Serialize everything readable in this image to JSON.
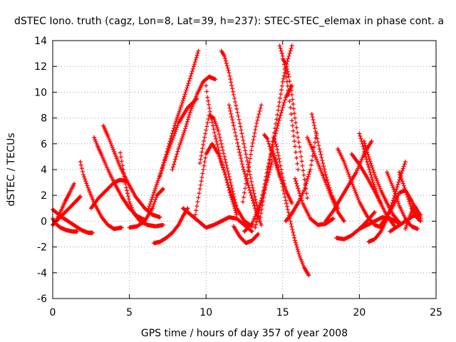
{
  "chart_data": {
    "type": "scatter",
    "title": "dSTEC Iono. truth (cagz, Lon=8, Lat=39, h=237): STEC-STEC_elemax in phase cont. a",
    "xlabel": "GPS time / hours of day 357 of year 2008",
    "ylabel": "dSTEC  / TECUs",
    "xlim": [
      0,
      25
    ],
    "ylim": [
      -6,
      14
    ],
    "xticks": [
      0,
      5,
      10,
      15,
      20,
      25
    ],
    "yticks": [
      -6,
      -4,
      -2,
      0,
      2,
      4,
      6,
      8,
      10,
      12,
      14
    ],
    "grid": true,
    "marker": "+",
    "color": "#ff0000",
    "series": [
      {
        "x": [
          0.0,
          0.3,
          0.6,
          1.0,
          1.5,
          1.9,
          2.3,
          2.6
        ],
        "y": [
          0.9,
          0.6,
          0.3,
          0.0,
          -0.4,
          -0.7,
          -0.9,
          -0.9
        ]
      },
      {
        "x": [
          0.0,
          0.2,
          0.5,
          0.9,
          1.3,
          1.6
        ],
        "y": [
          0.2,
          -0.2,
          -0.5,
          -0.7,
          -0.8,
          -0.8
        ]
      },
      {
        "x": [
          0.2,
          0.5,
          0.8,
          1.1,
          1.4
        ],
        "y": [
          0.0,
          0.7,
          1.5,
          2.2,
          2.9
        ]
      },
      {
        "x": [
          0.0,
          0.4,
          0.9,
          1.4,
          1.8
        ],
        "y": [
          -0.3,
          0.2,
          0.8,
          1.4,
          1.9
        ]
      },
      {
        "x": [
          1.8,
          2.0,
          2.3,
          2.7,
          3.2,
          3.6,
          4.0,
          4.5
        ],
        "y": [
          4.6,
          3.6,
          2.6,
          1.4,
          0.3,
          -0.3,
          -0.6,
          -0.5
        ]
      },
      {
        "x": [
          2.7,
          2.9,
          3.2,
          3.6,
          4.0,
          4.5,
          5.0,
          5.5,
          6.0
        ],
        "y": [
          6.5,
          5.9,
          5.1,
          4.0,
          3.0,
          1.9,
          1.0,
          0.4,
          0.1
        ]
      },
      {
        "x": [
          3.3,
          3.6,
          4.0,
          4.4,
          4.9,
          5.4,
          6.0,
          6.5,
          7.0
        ],
        "y": [
          7.4,
          6.6,
          5.4,
          4.2,
          3.0,
          1.9,
          1.0,
          0.5,
          0.3
        ]
      },
      {
        "x": [
          4.4,
          4.6,
          4.8,
          5.0,
          5.3,
          5.7,
          6.2,
          6.7,
          7.2
        ],
        "y": [
          5.3,
          4.0,
          2.6,
          1.5,
          0.6,
          0.0,
          -0.3,
          -0.4,
          -0.3
        ]
      },
      {
        "x": [
          2.5,
          3.0,
          3.5,
          4.0,
          4.4,
          4.8
        ],
        "y": [
          1.0,
          1.8,
          2.4,
          3.0,
          3.2,
          3.1
        ]
      },
      {
        "x": [
          5.0,
          5.5,
          6.0,
          6.5,
          6.8,
          7.2
        ],
        "y": [
          -0.5,
          -0.4,
          0.0,
          1.0,
          2.0,
          2.5
        ]
      },
      {
        "x": [
          6.6,
          7.0,
          7.4,
          7.8,
          8.2,
          8.5,
          8.8
        ],
        "y": [
          -1.7,
          -1.6,
          -1.3,
          -0.9,
          -0.3,
          0.4,
          1.0
        ]
      },
      {
        "x": [
          6.2,
          6.6,
          7.0,
          7.4,
          7.8,
          8.2,
          8.8,
          9.4
        ],
        "y": [
          0.8,
          2.2,
          3.6,
          5.0,
          6.3,
          7.6,
          8.8,
          9.5
        ]
      },
      {
        "x": [
          7.0,
          7.5,
          8.0,
          8.4,
          8.8,
          9.2,
          9.5
        ],
        "y": [
          3.5,
          5.6,
          7.6,
          9.0,
          10.5,
          12.0,
          13.2
        ]
      },
      {
        "x": [
          7.8,
          8.2,
          8.6,
          9.0,
          9.4,
          9.8,
          10.2,
          10.6
        ],
        "y": [
          4.0,
          5.6,
          7.0,
          8.6,
          9.8,
          10.8,
          11.2,
          11.0
        ]
      },
      {
        "x": [
          9.3,
          9.6,
          10.0,
          10.4,
          10.8,
          11.2,
          11.6,
          12.0
        ],
        "y": [
          0.5,
          2.5,
          5.2,
          6.0,
          5.2,
          3.8,
          2.0,
          0.5
        ]
      },
      {
        "x": [
          9.6,
          9.9,
          10.2,
          10.5,
          10.8,
          11.2,
          11.6,
          12.0
        ],
        "y": [
          4.5,
          6.5,
          8.2,
          8.0,
          7.0,
          5.0,
          3.0,
          1.0
        ]
      },
      {
        "x": [
          10.0,
          10.1,
          10.3,
          10.6,
          11.0,
          11.5,
          12.0,
          12.5,
          13.0
        ],
        "y": [
          10.5,
          9.6,
          8.2,
          6.6,
          4.6,
          2.6,
          1.0,
          0.0,
          -0.4
        ]
      },
      {
        "x": [
          11.0,
          11.2,
          11.5,
          11.8,
          12.2,
          12.6,
          13.0,
          13.4
        ],
        "y": [
          13.2,
          12.8,
          11.5,
          9.8,
          7.6,
          5.2,
          2.8,
          0.8
        ]
      },
      {
        "x": [
          11.5,
          11.8,
          12.1,
          12.4,
          12.8,
          13.2,
          13.6
        ],
        "y": [
          9.0,
          7.4,
          5.8,
          4.2,
          2.6,
          1.0,
          -0.3
        ]
      },
      {
        "x": [
          8.5,
          9.0,
          9.5,
          10.0,
          10.5,
          11.0,
          11.5,
          12.0,
          12.5,
          13.0
        ],
        "y": [
          1.0,
          0.5,
          0.0,
          -0.5,
          -0.3,
          0.0,
          0.3,
          0.2,
          -0.3,
          -0.8
        ]
      },
      {
        "x": [
          11.8,
          12.2,
          12.6,
          13.0,
          13.4
        ],
        "y": [
          -0.4,
          -1.2,
          -1.7,
          -1.5,
          -1.0
        ]
      },
      {
        "x": [
          12.4,
          12.7,
          13.0,
          13.3,
          13.6
        ],
        "y": [
          1.5,
          3.6,
          5.8,
          7.6,
          9.0
        ]
      },
      {
        "x": [
          12.5,
          13.0,
          13.5,
          14.0,
          14.3
        ],
        "y": [
          -0.8,
          -0.2,
          1.2,
          3.2,
          4.6
        ]
      },
      {
        "x": [
          13.5,
          13.9,
          14.3,
          14.7,
          15.0,
          15.3,
          15.6
        ],
        "y": [
          0.0,
          2.8,
          5.8,
          8.6,
          10.8,
          12.4,
          13.6
        ]
      },
      {
        "x": [
          13.2,
          13.6,
          14.0,
          14.4,
          14.8,
          15.2,
          15.6
        ],
        "y": [
          -0.5,
          1.5,
          4.0,
          6.2,
          8.0,
          9.6,
          10.5
        ]
      },
      {
        "x": [
          14.8,
          15.0,
          15.2,
          15.4,
          15.6,
          15.8,
          16.0
        ],
        "y": [
          13.6,
          12.8,
          11.5,
          9.8,
          7.8,
          5.8,
          4.0
        ]
      },
      {
        "x": [
          15.0,
          15.2,
          15.4,
          15.6,
          15.8,
          16.2,
          16.6
        ],
        "y": [
          12.6,
          12.2,
          11.2,
          9.8,
          8.0,
          5.0,
          1.8
        ]
      },
      {
        "x": [
          14.3,
          14.6,
          14.9,
          15.2,
          15.5,
          15.8,
          16.1,
          16.4,
          16.7
        ],
        "y": [
          5.6,
          4.6,
          3.2,
          1.6,
          0.0,
          -1.5,
          -2.7,
          -3.6,
          -4.2
        ]
      },
      {
        "x": [
          13.8,
          14.0,
          14.2,
          14.5,
          14.8,
          15.2,
          15.6
        ],
        "y": [
          6.7,
          6.4,
          5.6,
          4.6,
          3.5,
          2.4,
          1.4
        ]
      },
      {
        "x": [
          14.4,
          14.6,
          14.8,
          15.0,
          15.2
        ],
        "y": [
          6.5,
          5.8,
          4.6,
          3.4,
          2.4
        ]
      },
      {
        "x": [
          15.2,
          15.6,
          16.0,
          16.4,
          16.8,
          17.2
        ],
        "y": [
          0.0,
          0.6,
          1.4,
          2.4,
          4.0,
          6.8
        ]
      },
      {
        "x": [
          16.6,
          17.0,
          17.4,
          17.8,
          18.2,
          18.6,
          19.0
        ],
        "y": [
          6.5,
          5.4,
          4.2,
          3.0,
          1.8,
          0.7,
          0.0
        ]
      },
      {
        "x": [
          16.9,
          17.1,
          17.4,
          17.8,
          18.2,
          18.6
        ],
        "y": [
          8.3,
          7.2,
          5.6,
          3.6,
          2.0,
          1.0
        ]
      },
      {
        "x": [
          15.8,
          16.3,
          16.8,
          17.3,
          17.8,
          18.3
        ],
        "y": [
          3.3,
          1.4,
          0.2,
          -0.3,
          -0.2,
          0.2
        ]
      },
      {
        "x": [
          17.8,
          18.3,
          18.8,
          19.3,
          19.8,
          20.3,
          20.8
        ],
        "y": [
          0.0,
          0.8,
          1.8,
          2.8,
          3.8,
          5.2,
          6.2
        ]
      },
      {
        "x": [
          18.6,
          19.0,
          19.5,
          20.0,
          20.5,
          21.0,
          21.5
        ],
        "y": [
          5.6,
          4.6,
          3.0,
          1.5,
          0.4,
          -0.3,
          -0.5
        ]
      },
      {
        "x": [
          18.5,
          19.0,
          19.5,
          20.0,
          20.5,
          21.0
        ],
        "y": [
          -1.3,
          -1.4,
          -1.1,
          -0.6,
          0.0,
          0.7
        ]
      },
      {
        "x": [
          19.5,
          20.0,
          20.5,
          21.0,
          21.4
        ],
        "y": [
          5.2,
          4.4,
          3.4,
          2.3,
          1.4
        ]
      },
      {
        "x": [
          20.0,
          20.2,
          20.5,
          20.9,
          21.3,
          21.8,
          22.3
        ],
        "y": [
          6.8,
          6.0,
          4.6,
          3.0,
          1.6,
          0.4,
          -0.4
        ]
      },
      {
        "x": [
          20.3,
          20.6,
          21.0,
          21.4,
          21.8,
          22.2,
          22.6
        ],
        "y": [
          6.2,
          5.0,
          3.6,
          2.4,
          1.4,
          0.5,
          -0.1
        ]
      },
      {
        "x": [
          20.6,
          21.0,
          21.4,
          21.8,
          22.2,
          22.6,
          23.0
        ],
        "y": [
          -1.6,
          -1.4,
          -0.8,
          0.2,
          1.6,
          3.2,
          4.6
        ]
      },
      {
        "x": [
          21.4,
          21.8,
          22.2,
          22.6,
          23.0,
          23.4,
          23.8
        ],
        "y": [
          -0.3,
          0.4,
          1.2,
          2.2,
          2.4,
          1.6,
          0.6
        ]
      },
      {
        "x": [
          21.8,
          22.2,
          22.6,
          23.0,
          23.4,
          23.8
        ],
        "y": [
          3.8,
          2.6,
          1.2,
          0.2,
          -0.4,
          -0.6
        ]
      },
      {
        "x": [
          22.6,
          23.0,
          23.4,
          23.8,
          24.0
        ],
        "y": [
          3.8,
          2.4,
          1.0,
          0.2,
          0.0
        ]
      },
      {
        "x": [
          23.0,
          23.3,
          23.6,
          23.9,
          24.0
        ],
        "y": [
          -0.6,
          0.4,
          1.2,
          0.6,
          0.2
        ]
      },
      {
        "x": [
          22.0,
          22.5,
          23.0,
          23.5,
          24.0
        ],
        "y": [
          -0.8,
          -0.4,
          0.0,
          0.4,
          0.5
        ]
      },
      {
        "x": [
          20.0,
          20.5,
          21.0,
          21.5,
          22.0,
          22.5
        ],
        "y": [
          -0.6,
          -0.3,
          0.0,
          0.3,
          0.2,
          -0.1
        ]
      }
    ]
  }
}
